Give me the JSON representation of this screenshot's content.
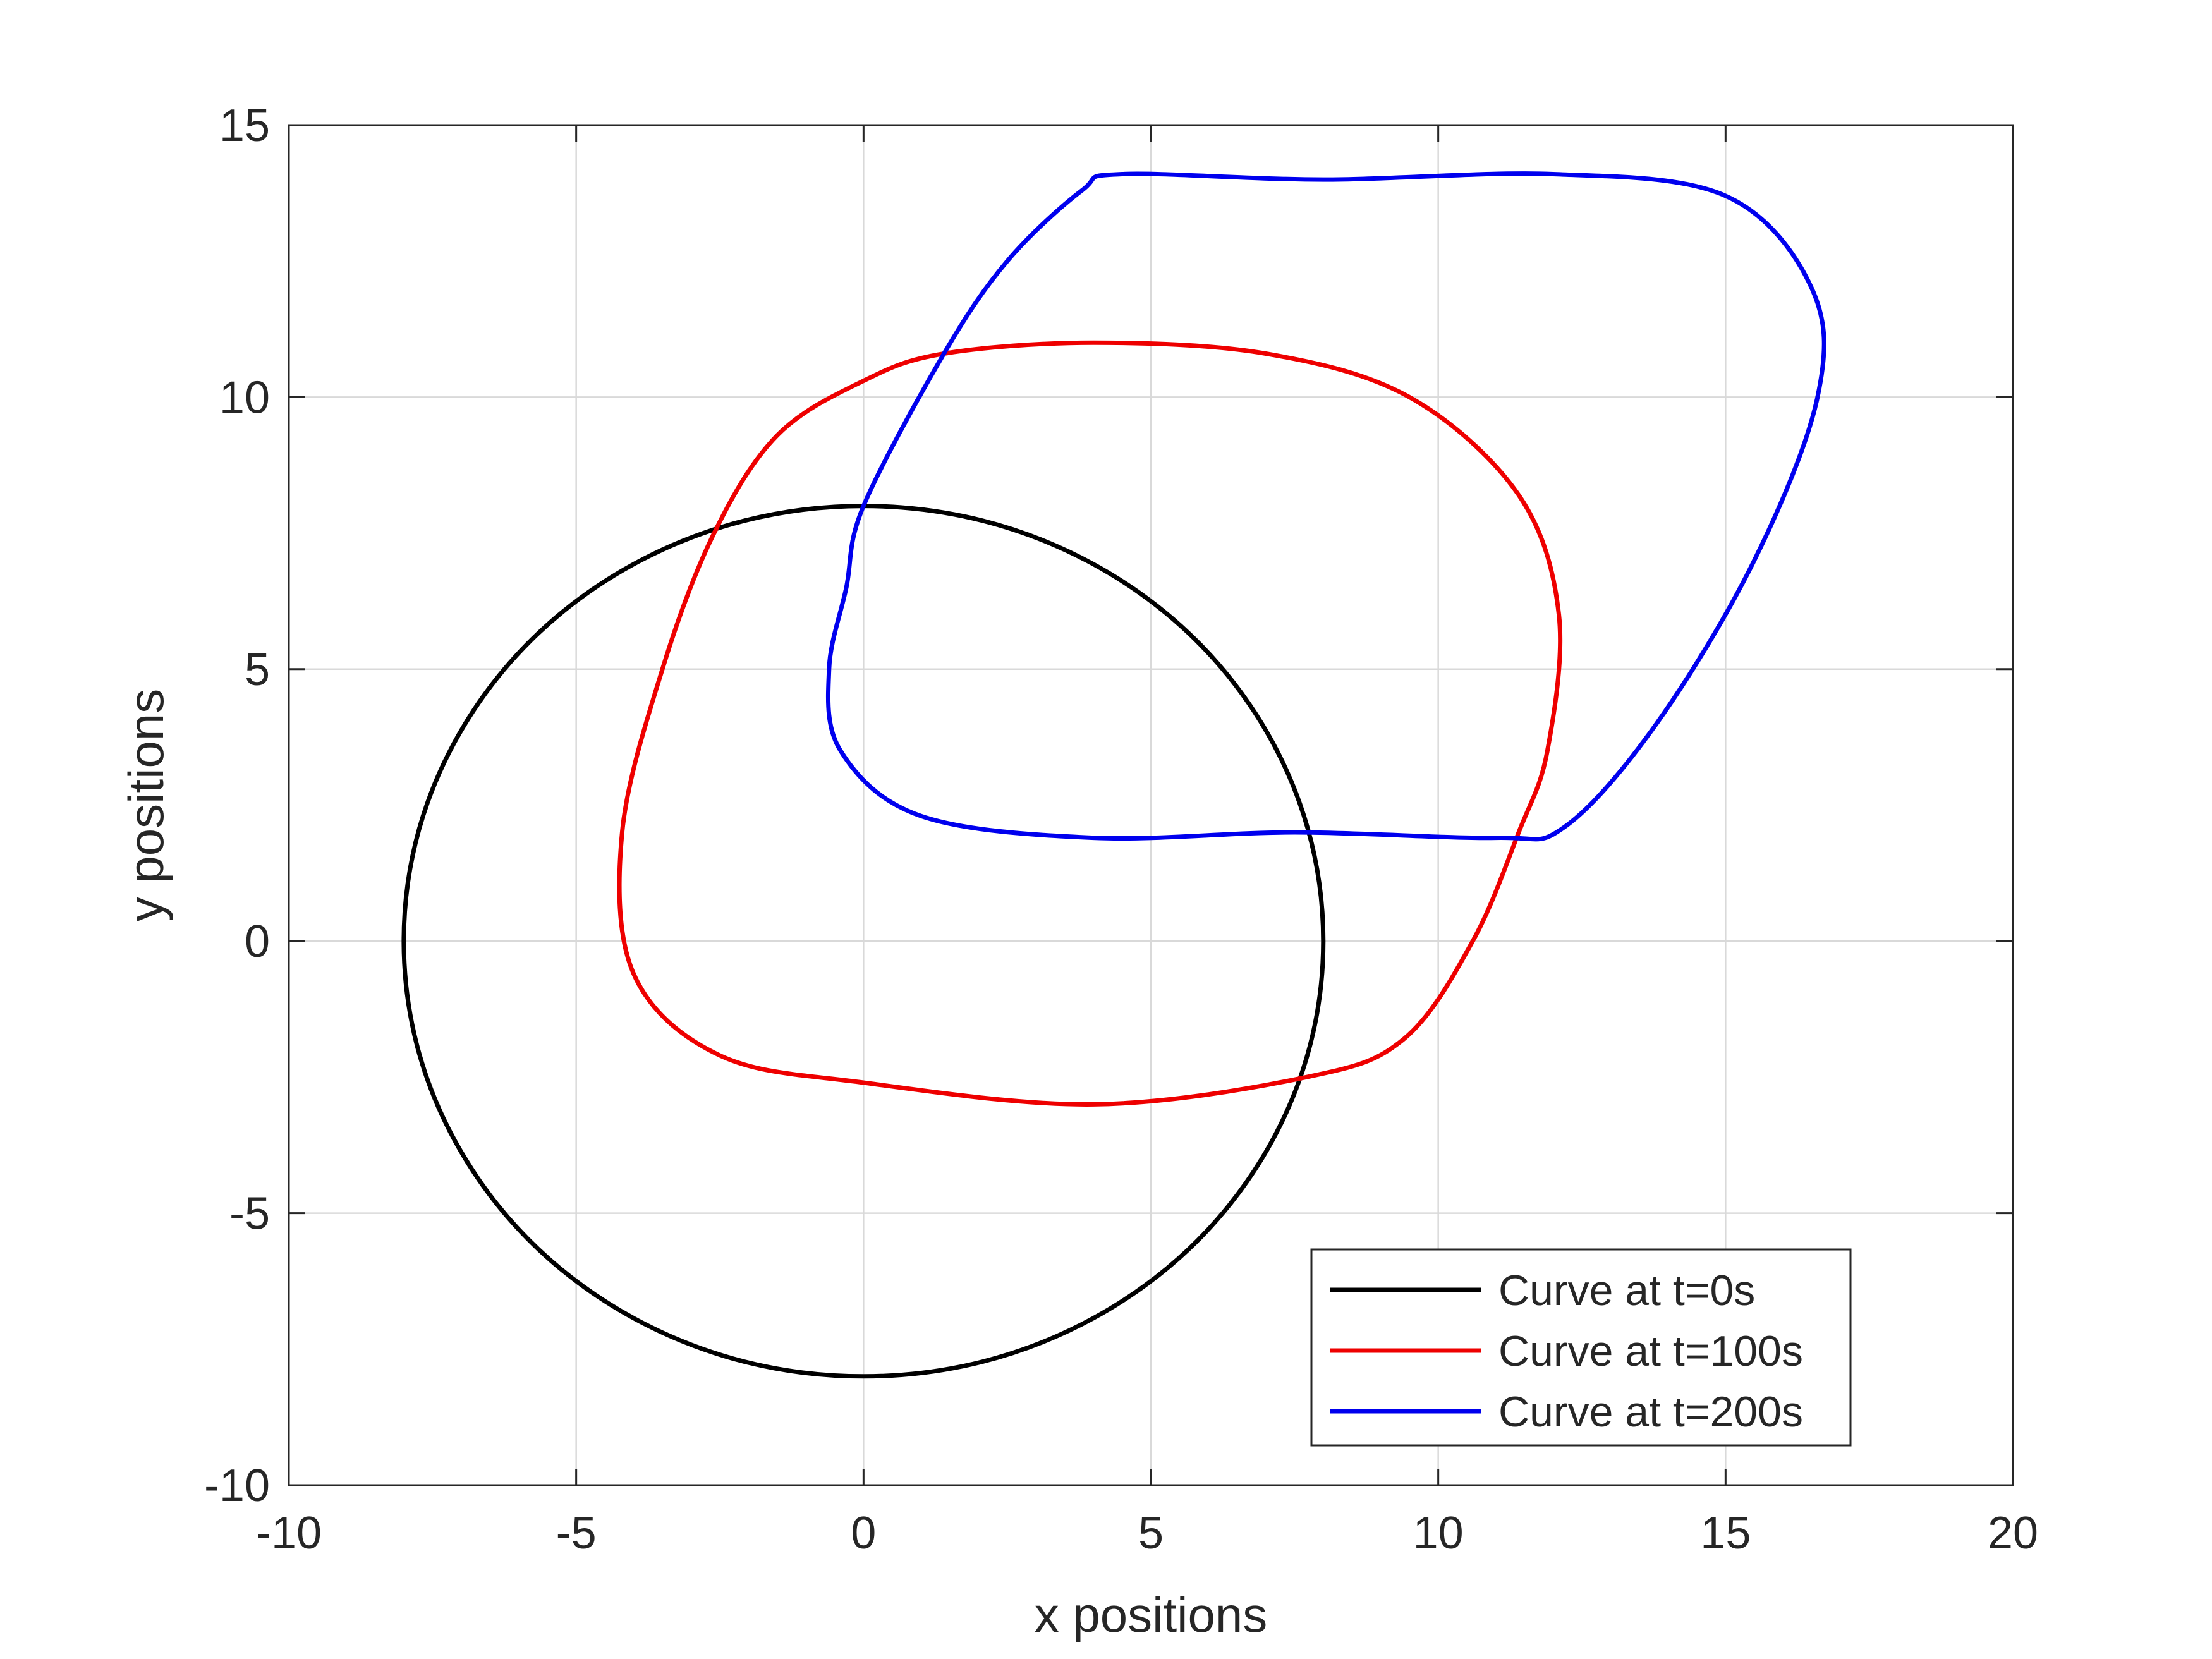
{
  "chart_data": {
    "type": "line",
    "title": "",
    "xlabel": "x positions",
    "ylabel": "y positions",
    "xlim": [
      -10,
      20
    ],
    "ylim": [
      -10,
      15
    ],
    "xticks": [
      -10,
      -5,
      0,
      5,
      10,
      15,
      20
    ],
    "yticks": [
      -10,
      -5,
      0,
      5,
      10,
      15
    ],
    "grid": true,
    "legend_position": "bottom-right",
    "colors": {
      "axis": "#262626",
      "grid": "#d9d9d9"
    },
    "series": [
      {
        "name": "Curve at t=0s",
        "color": "#000000",
        "closed": true,
        "points": [
          [
            8,
            0
          ],
          [
            7.73,
            2.07
          ],
          [
            6.93,
            4.0
          ],
          [
            5.66,
            5.66
          ],
          [
            4.0,
            6.93
          ],
          [
            2.07,
            7.73
          ],
          [
            0,
            8
          ],
          [
            -2.07,
            7.73
          ],
          [
            -4.0,
            6.93
          ],
          [
            -5.66,
            5.66
          ],
          [
            -6.93,
            4.0
          ],
          [
            -7.73,
            2.07
          ],
          [
            -8,
            0
          ],
          [
            -7.73,
            -2.07
          ],
          [
            -6.93,
            -4.0
          ],
          [
            -5.66,
            -5.66
          ],
          [
            -4.0,
            -6.93
          ],
          [
            -2.07,
            -7.73
          ],
          [
            0,
            -8
          ],
          [
            2.07,
            -7.73
          ],
          [
            4.0,
            -6.93
          ],
          [
            5.66,
            -5.66
          ],
          [
            6.93,
            -4.0
          ],
          [
            7.73,
            -2.07
          ]
        ]
      },
      {
        "name": "Curve at t=100s",
        "color": "#ee0000",
        "closed": true,
        "points": [
          [
            4,
            11
          ],
          [
            7,
            10.8
          ],
          [
            9.5,
            10.0
          ],
          [
            11.4,
            8.2
          ],
          [
            12.1,
            6.0
          ],
          [
            11.9,
            3.5
          ],
          [
            11.4,
            2.0
          ],
          [
            10.6,
            0
          ],
          [
            9.4,
            -1.8
          ],
          [
            7.7,
            -2.5
          ],
          [
            4,
            -3.0
          ],
          [
            0,
            -2.6
          ],
          [
            -2.5,
            -2.1
          ],
          [
            -4.0,
            -0.6
          ],
          [
            -4.2,
            2.0
          ],
          [
            -3.5,
            5.0
          ],
          [
            -2.6,
            7.5
          ],
          [
            -1.5,
            9.3
          ],
          [
            0,
            10.3
          ],
          [
            1.4,
            10.8
          ]
        ]
      },
      {
        "name": "Curve at t=200s",
        "color": "#0000ee",
        "closed": true,
        "points": [
          [
            4.5,
            14.1
          ],
          [
            8,
            14.0
          ],
          [
            12,
            14.1
          ],
          [
            15.0,
            13.7
          ],
          [
            16.5,
            12.0
          ],
          [
            16.6,
            10.0
          ],
          [
            15.5,
            7.0
          ],
          [
            13.8,
            4.0
          ],
          [
            12.2,
            2.1
          ],
          [
            11.0,
            1.9
          ],
          [
            7.5,
            2.0
          ],
          [
            4,
            1.9
          ],
          [
            1.0,
            2.3
          ],
          [
            -0.4,
            3.5
          ],
          [
            -0.6,
            5.0
          ],
          [
            -0.3,
            6.5
          ],
          [
            0,
            8
          ],
          [
            1.4,
            10.8
          ],
          [
            2.5,
            12.5
          ],
          [
            3.8,
            13.8
          ]
        ]
      }
    ]
  }
}
